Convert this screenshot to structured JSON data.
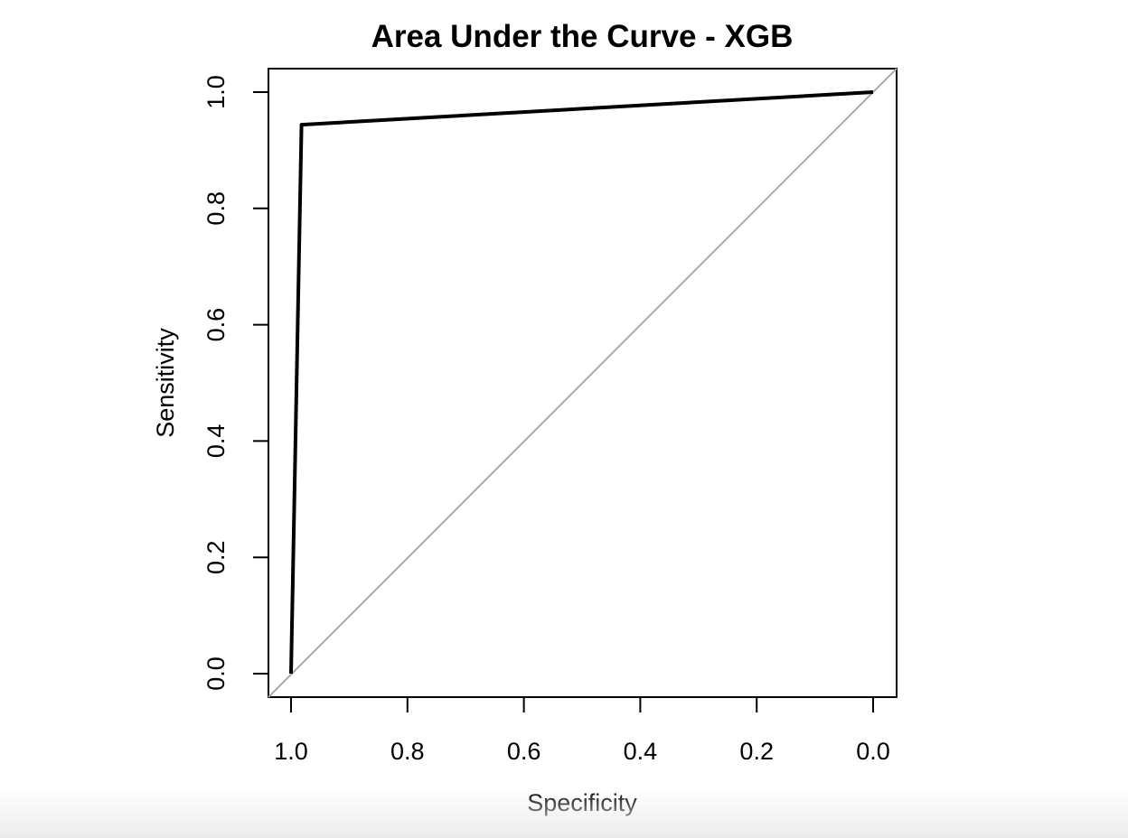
{
  "chart_data": {
    "type": "line",
    "title": "Area Under the Curve - XGB",
    "xlabel": "Specificity",
    "ylabel": "Sensitivity",
    "x_reversed": true,
    "xlim": [
      1.0,
      0.0
    ],
    "ylim": [
      0.0,
      1.0
    ],
    "x_ticks": [
      "1.0",
      "0.8",
      "0.6",
      "0.4",
      "0.2",
      "0.0"
    ],
    "y_ticks": [
      "0.0",
      "0.2",
      "0.4",
      "0.6",
      "0.8",
      "1.0"
    ],
    "grid": false,
    "legend": "none",
    "series": [
      {
        "x": [
          1.0,
          0.982,
          0.0
        ],
        "y": [
          0.0,
          0.944,
          1.0
        ],
        "color": "#000000"
      }
    ],
    "reference_line": {
      "x": [
        1.0,
        0.0
      ],
      "y": [
        0.0,
        1.0
      ],
      "color": "#aaaaaa"
    }
  }
}
